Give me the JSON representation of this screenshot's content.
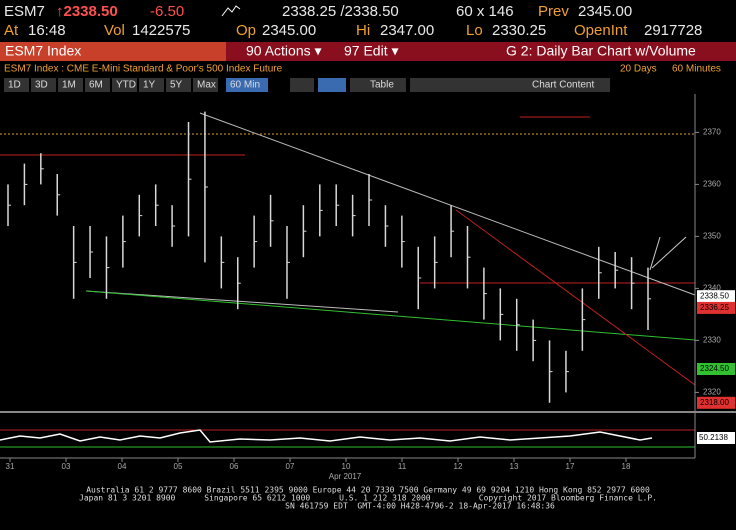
{
  "header": {
    "ticker": "ESM7",
    "price": "↑2338.50",
    "change": "-6.50",
    "bid_ask": "2338.25 /2338.50",
    "size": "60 x 146",
    "prev_label": "Prev",
    "prev": "2345.00",
    "time_label": "At",
    "time": "16:48",
    "vol_label": "Vol",
    "vol": "1422575",
    "open_label": "Op",
    "open": "2345.00",
    "high_label": "Hi",
    "high": "2347.00",
    "low_label": "Lo",
    "low": "2330.25",
    "oi_label": "OpenInt",
    "oi": "2917728"
  },
  "menu": {
    "security": "ESM7 Index",
    "actions": "90 Actions ▾",
    "edit": "97 Edit ▾",
    "chart_name": "G 2: Daily Bar Chart w/Volume"
  },
  "subtitle": "ESM7 Index : CME E-Mini Standard & Poor's 500 Index Future",
  "range": "20 Days",
  "period": "60 Minutes",
  "toolbar": {
    "ranges": [
      "1D",
      "3D",
      "1M",
      "6M",
      "YTD",
      "1Y",
      "5Y",
      "Max"
    ],
    "interval": "60 Min",
    "table": "Table",
    "chart_content": "Chart Content"
  },
  "chart_data": {
    "type": "ohlc",
    "low": [
      2352,
      2356,
      2360,
      2354,
      2338,
      2342,
      2338,
      2344,
      2350,
      2352,
      2348,
      2350,
      2345,
      2340,
      2336,
      2344,
      2348,
      2338,
      2346,
      2350,
      2352,
      2350,
      2352,
      2348,
      2344,
      2336,
      2340,
      2346,
      2340,
      2334,
      2330,
      2328,
      2326,
      2318,
      2320,
      2328,
      2338,
      2340,
      2336,
      2332
    ],
    "high": [
      2360,
      2364,
      2366,
      2362,
      2352,
      2352,
      2350,
      2354,
      2358,
      2360,
      2356,
      2372,
      2374,
      2350,
      2346,
      2354,
      2358,
      2352,
      2356,
      2360,
      2360,
      2358,
      2362,
      2356,
      2354,
      2348,
      2350,
      2356,
      2352,
      2344,
      2340,
      2338,
      2334,
      2330,
      2328,
      2340,
      2348,
      2347,
      2346,
      2344
    ],
    "color": "#d8d8d8",
    "ylim": [
      2317,
      2377
    ],
    "yticks": [
      2320,
      2330,
      2340,
      2350,
      2360,
      2370
    ],
    "price_tags": [
      {
        "value": 2338.5,
        "label": "2338.50",
        "color": "#ffffff"
      },
      {
        "value": 2336.25,
        "label": "2336.25",
        "color": "#e03030"
      },
      {
        "value": 2324.5,
        "label": "2324.50",
        "color": "#30c030"
      },
      {
        "value": 2318,
        "label": "2318.00",
        "color": "#e03030"
      }
    ],
    "dates": [
      "31",
      "03",
      "04",
      "05",
      "06",
      "07",
      "10",
      "11",
      "12",
      "13",
      "17",
      "18"
    ],
    "month": "Apr 2017",
    "indicator_last": "50.2138"
  },
  "footer": [
    "Australia 61 2 9777 8600 Brazil 5511 2395 9000 Europe 44 20 7330 7500 Germany 49 69 9204 1210 Hong Kong 852 2977 6000",
    "Japan 81 3 3201 8900      Singapore 65 6212 1000      U.S. 1 212 318 2000          Copyright 2017 Bloomberg Finance L.P.",
    "SN 461759 EDT  GMT-4:00 H428-4796-2 18-Apr-2017 16:48:36"
  ]
}
